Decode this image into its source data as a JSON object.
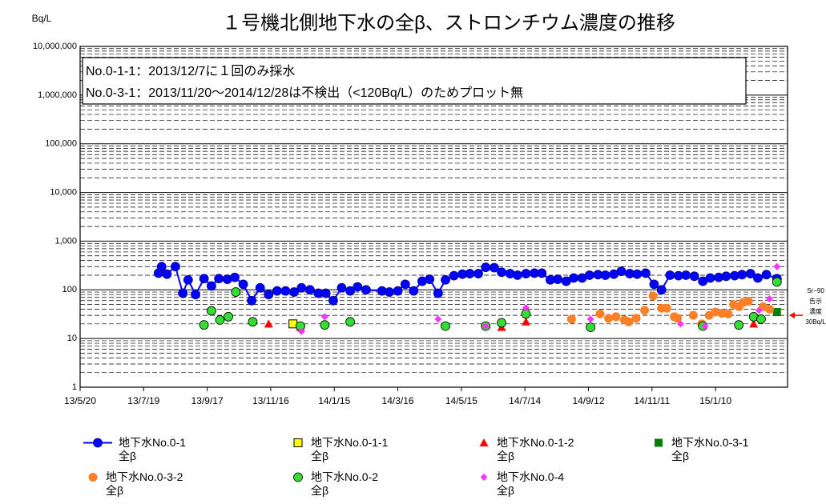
{
  "chart_data": {
    "type": "scatter",
    "title": "１号機北側地下水の全β、ストロンチウム濃度の推移",
    "y_unit": "Bq/L",
    "log_y": true,
    "minor_grid": true,
    "annotation": [
      "No.0-1-1：2013/12/7に１回のみ採水",
      "No.0-3-1：2013/11/20～2014/12/28は不検出（<120Bq/L）のためプロット無"
    ],
    "reference": {
      "lines": [
        "Sr−90",
        "告示",
        "濃度",
        "30Bq/L"
      ],
      "value": 30,
      "color": "#ff0000"
    },
    "xlim": [
      "2013-05-20",
      "2015-03-19"
    ],
    "xticks": [
      {
        "value": "2013-05-20",
        "label": "13/5/20"
      },
      {
        "value": "2013-07-19",
        "label": "13/7/19"
      },
      {
        "value": "2013-09-17",
        "label": "13/9/17"
      },
      {
        "value": "2013-11-16",
        "label": "13/11/16"
      },
      {
        "value": "2014-01-15",
        "label": "14/1/15"
      },
      {
        "value": "2014-03-16",
        "label": "14/3/16"
      },
      {
        "value": "2014-05-15",
        "label": "14/5/15"
      },
      {
        "value": "2014-07-14",
        "label": "14/7/14"
      },
      {
        "value": "2014-09-12",
        "label": "14/9/12"
      },
      {
        "value": "2014-11-11",
        "label": "14/11/11"
      },
      {
        "value": "2015-01-10",
        "label": "15/1/10"
      }
    ],
    "ylim": [
      1,
      10000000
    ],
    "yticks": [
      1,
      10,
      100,
      {
        "value": 1000,
        "label": "1,000"
      },
      {
        "value": 10000,
        "label": "10,000"
      },
      {
        "value": 100000,
        "label": "100,000"
      },
      {
        "value": 1000000,
        "label": "1,000,000"
      },
      {
        "value": 10000000,
        "label": "10,000,000"
      }
    ],
    "series": [
      {
        "name": "地下水No.0-1\n全β",
        "color": "#0000ff",
        "marker": "circle",
        "line": true,
        "x": [
          "2013-08-02",
          "2013-08-05",
          "2013-08-10",
          "2013-08-18",
          "2013-08-25",
          "2013-08-30",
          "2013-09-06",
          "2013-09-14",
          "2013-09-21",
          "2013-09-28",
          "2013-10-06",
          "2013-10-13",
          "2013-10-21",
          "2013-10-29",
          "2013-11-06",
          "2013-11-14",
          "2013-11-22",
          "2013-11-30",
          "2013-12-08",
          "2013-12-15",
          "2013-12-23",
          "2013-12-31",
          "2014-01-07",
          "2014-01-14",
          "2014-01-22",
          "2014-01-30",
          "2014-02-06",
          "2014-02-14",
          "2014-03-01",
          "2014-03-08",
          "2014-03-16",
          "2014-03-23",
          "2014-03-31",
          "2014-04-08",
          "2014-04-15",
          "2014-04-23",
          "2014-04-30",
          "2014-05-08",
          "2014-05-16",
          "2014-05-23",
          "2014-05-31",
          "2014-06-07",
          "2014-06-15",
          "2014-06-22",
          "2014-06-30",
          "2014-07-07",
          "2014-07-15",
          "2014-07-23",
          "2014-07-30",
          "2014-08-07",
          "2014-08-14",
          "2014-08-22",
          "2014-08-29",
          "2014-09-06",
          "2014-09-13",
          "2014-09-21",
          "2014-09-28",
          "2014-10-06",
          "2014-10-13",
          "2014-10-21",
          "2014-10-28",
          "2014-11-05",
          "2014-11-13",
          "2014-11-20",
          "2014-11-28",
          "2014-12-06",
          "2014-12-13",
          "2014-12-21",
          "2014-12-29",
          "2015-01-05",
          "2015-01-13",
          "2015-01-20",
          "2015-01-28",
          "2015-02-04",
          "2015-02-12",
          "2015-02-19",
          "2015-02-27",
          "2015-03-09"
        ],
        "values": [
          220,
          300,
          210,
          300,
          85,
          160,
          80,
          170,
          120,
          170,
          165,
          180,
          130,
          60,
          110,
          80,
          95,
          95,
          90,
          110,
          100,
          85,
          85,
          60,
          110,
          95,
          115,
          100,
          95,
          90,
          95,
          130,
          95,
          150,
          165,
          85,
          160,
          195,
          210,
          215,
          215,
          290,
          285,
          230,
          215,
          200,
          215,
          220,
          220,
          160,
          165,
          150,
          175,
          175,
          200,
          205,
          200,
          210,
          240,
          215,
          210,
          220,
          130,
          100,
          200,
          195,
          200,
          190,
          150,
          175,
          180,
          190,
          195,
          205,
          215,
          175,
          205,
          170
        ]
      },
      {
        "name": "地下水No.0-1-1\n全β",
        "color": "#ffff00",
        "marker": "square",
        "x": [
          "2013-12-07"
        ],
        "values": [
          20
        ]
      },
      {
        "name": "地下水No.0-1-2\n全β",
        "color": "#ff0000",
        "marker": "triangle",
        "x": [
          "2013-11-14",
          "2013-12-14",
          "2014-06-22",
          "2014-07-15",
          "2015-02-15"
        ],
        "values": [
          20,
          17,
          17,
          22,
          20
        ]
      },
      {
        "name": "地下水No.0-3-1\n全β",
        "color": "#008000",
        "marker": "square",
        "x": [
          "2015-03-09"
        ],
        "values": [
          35
        ]
      },
      {
        "name": "地下水No.0-3-2\n全β",
        "color": "#ff7f27",
        "marker": "circle",
        "x": [
          "2014-08-27",
          "2014-09-23",
          "2014-10-01",
          "2014-10-08",
          "2014-10-16",
          "2014-10-20",
          "2014-10-27",
          "2014-11-04",
          "2014-11-12",
          "2014-11-20",
          "2014-11-25",
          "2014-12-02",
          "2014-12-05",
          "2014-12-20",
          "2014-12-28",
          "2015-01-04",
          "2015-01-10",
          "2015-01-16",
          "2015-01-22",
          "2015-01-27",
          "2015-02-01",
          "2015-02-05",
          "2015-02-10",
          "2015-02-24",
          "2015-03-02"
        ],
        "values": [
          25,
          32,
          26,
          28,
          24,
          22,
          26,
          38,
          75,
          42,
          42,
          28,
          26,
          30,
          20,
          30,
          35,
          33,
          32,
          50,
          45,
          55,
          58,
          45,
          40
        ]
      },
      {
        "name": "地下水No.0-2\n全β",
        "color": "#33dd33",
        "marker": "circle",
        "x": [
          "2013-09-14",
          "2013-09-21",
          "2013-09-29",
          "2013-10-07",
          "2013-10-14",
          "2013-10-30",
          "2013-12-14",
          "2014-01-06",
          "2014-01-30",
          "2014-04-30",
          "2014-06-07",
          "2014-06-22",
          "2014-07-15",
          "2014-09-14",
          "2014-12-29",
          "2015-02-01",
          "2015-02-15",
          "2015-02-22",
          "2015-03-09"
        ],
        "values": [
          19,
          37,
          24,
          28,
          90,
          22,
          18,
          19,
          22,
          18,
          18,
          21,
          32,
          17,
          18,
          19,
          28,
          25,
          145
        ]
      },
      {
        "name": "地下水No.0-4\n全β",
        "color": "#ff33ff",
        "marker": "diamond",
        "x": [
          "2013-12-15",
          "2014-01-06",
          "2014-04-23",
          "2014-06-07",
          "2014-07-15",
          "2014-09-14",
          "2014-12-08",
          "2014-12-31",
          "2015-02-20",
          "2015-03-02",
          "2015-03-09"
        ],
        "values": [
          14,
          28,
          25,
          18,
          43,
          25,
          20,
          18,
          38,
          65,
          300
        ]
      }
    ]
  }
}
